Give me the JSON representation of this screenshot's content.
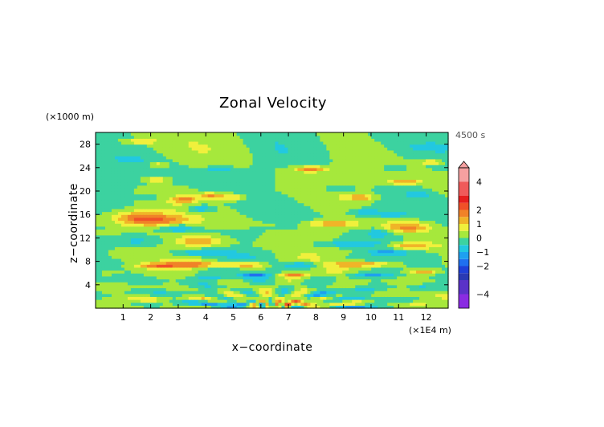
{
  "chart_data": {
    "type": "heatmap",
    "title": "Zonal Velocity",
    "xlabel": "x−coordinate",
    "ylabel": "z−coordinate",
    "x_unit": "(×1E4 m)",
    "y_unit": "(×1000 m)",
    "time_label": "4500 s",
    "xlim": [
      0,
      12.8
    ],
    "ylim": [
      0,
      30
    ],
    "x_ticks": [
      1,
      2,
      3,
      4,
      5,
      6,
      7,
      8,
      9,
      10,
      11,
      12
    ],
    "x_tick_labels": [
      "1",
      "2",
      "3",
      "4",
      "5",
      "6",
      "7",
      "8",
      "9",
      "10",
      "11",
      "12"
    ],
    "y_ticks": [
      4,
      8,
      12,
      16,
      20,
      24,
      28
    ],
    "y_tick_labels": [
      "4",
      "8",
      "12",
      "16",
      "20",
      "24",
      "28"
    ],
    "colorbar": {
      "tick_values": [
        4,
        2,
        1,
        0,
        -1,
        -2,
        -4
      ],
      "tick_labels": [
        "4",
        "2",
        "1",
        "0",
        "−1",
        "−2",
        "−4"
      ],
      "bands": [
        {
          "from": -5,
          "to": -4,
          "color": "#8a2be2"
        },
        {
          "from": -4,
          "to": -3,
          "color": "#5a32c8"
        },
        {
          "from": -3,
          "to": -2.5,
          "color": "#2a3ab4"
        },
        {
          "from": -2.5,
          "to": -2,
          "color": "#2040d8"
        },
        {
          "from": -2,
          "to": -1.5,
          "color": "#2070f0"
        },
        {
          "from": -1.5,
          "to": -1,
          "color": "#1ea0f0"
        },
        {
          "from": -1,
          "to": -0.5,
          "color": "#22c8e0"
        },
        {
          "from": -0.5,
          "to": 0,
          "color": "#3cd2a0"
        },
        {
          "from": 0,
          "to": 0.5,
          "color": "#a6e83c"
        },
        {
          "from": 0.5,
          "to": 1,
          "color": "#f0f03c"
        },
        {
          "from": 1,
          "to": 1.5,
          "color": "#f0b428"
        },
        {
          "from": 1.5,
          "to": 2,
          "color": "#f08228"
        },
        {
          "from": 2,
          "to": 2.5,
          "color": "#f05028"
        },
        {
          "from": 2.5,
          "to": 3,
          "color": "#e61e1e"
        },
        {
          "from": 3,
          "to": 4,
          "color": "#f05a5a"
        },
        {
          "from": 4,
          "to": 5,
          "color": "#f5a0a0"
        }
      ]
    },
    "field": {
      "description_source": "zonal velocity contour field, fan-shaped wave pattern from surface source near x=6.5",
      "source_x": 6.5,
      "background": 0.4,
      "features": [
        {
          "x": 1.5,
          "z": 15.5,
          "sx": 0.9,
          "sz": 1.2,
          "v": 1.7
        },
        {
          "x": 2.5,
          "z": 15,
          "sx": 1.0,
          "sz": 1.0,
          "v": 1.4
        },
        {
          "x": 1.6,
          "z": 11.5,
          "sx": 1.0,
          "sz": 0.9,
          "v": -0.9
        },
        {
          "x": 3.0,
          "z": 13.8,
          "sx": 0.6,
          "sz": 0.7,
          "v": -1.2
        },
        {
          "x": 3.8,
          "z": 11.5,
          "sx": 0.9,
          "sz": 1.0,
          "v": 1.6
        },
        {
          "x": 3.6,
          "z": 7.5,
          "sx": 1.2,
          "sz": 0.6,
          "v": 1.6
        },
        {
          "x": 2.2,
          "z": 7.3,
          "sx": 0.8,
          "sz": 0.5,
          "v": 1.5
        },
        {
          "x": 3.8,
          "z": 9.5,
          "sx": 1.0,
          "sz": 0.5,
          "v": -0.9
        },
        {
          "x": 4.2,
          "z": 5.3,
          "sx": 1.0,
          "sz": 0.5,
          "v": -0.8
        },
        {
          "x": 5.5,
          "z": 7.5,
          "sx": 0.6,
          "sz": 0.4,
          "v": 1.8
        },
        {
          "x": 5.8,
          "z": 5.8,
          "sx": 0.5,
          "sz": 0.4,
          "v": -1.6
        },
        {
          "x": 7.2,
          "z": 5.8,
          "sx": 0.5,
          "sz": 0.4,
          "v": 1.8
        },
        {
          "x": 7.5,
          "z": 7.5,
          "sx": 0.6,
          "sz": 0.4,
          "v": -1.2
        },
        {
          "x": 3.2,
          "z": 18.6,
          "sx": 0.4,
          "sz": 0.5,
          "v": 1.7
        },
        {
          "x": 3.8,
          "z": 17.0,
          "sx": 0.5,
          "sz": 0.7,
          "v": -1.2
        },
        {
          "x": 4.2,
          "z": 19.2,
          "sx": 0.5,
          "sz": 0.6,
          "v": 1.6
        },
        {
          "x": 5.0,
          "z": 19.0,
          "sx": 0.4,
          "sz": 0.6,
          "v": 1.3
        },
        {
          "x": 4.5,
          "z": 23.7,
          "sx": 0.6,
          "sz": 0.5,
          "v": -0.9
        },
        {
          "x": 2.2,
          "z": 22.0,
          "sx": 0.4,
          "sz": 0.3,
          "v": 1.6
        },
        {
          "x": 1.2,
          "z": 25.5,
          "sx": 0.5,
          "sz": 0.4,
          "v": -0.8
        },
        {
          "x": 1.6,
          "z": 28.5,
          "sx": 0.6,
          "sz": 0.3,
          "v": 1.5
        },
        {
          "x": 2.3,
          "z": 24.5,
          "sx": 0.3,
          "sz": 0.3,
          "v": 1.5
        },
        {
          "x": 1.4,
          "z": 3.0,
          "sx": 0.6,
          "sz": 0.3,
          "v": -0.7
        },
        {
          "x": 4.0,
          "z": 2.0,
          "sx": 0.9,
          "sz": 0.4,
          "v": 1.0
        },
        {
          "x": 7.8,
          "z": 23.8,
          "sx": 0.6,
          "sz": 0.5,
          "v": 1.8
        },
        {
          "x": 8.8,
          "z": 20.5,
          "sx": 0.5,
          "sz": 0.5,
          "v": -0.9
        },
        {
          "x": 9.6,
          "z": 19.0,
          "sx": 0.5,
          "sz": 0.5,
          "v": 1.5
        },
        {
          "x": 9.8,
          "z": 16.5,
          "sx": 0.6,
          "sz": 0.6,
          "v": -0.9
        },
        {
          "x": 8.6,
          "z": 14.5,
          "sx": 0.9,
          "sz": 0.6,
          "v": 1.6
        },
        {
          "x": 9.3,
          "z": 11.0,
          "sx": 1.1,
          "sz": 0.5,
          "v": -1.0
        },
        {
          "x": 11.3,
          "z": 14.0,
          "sx": 0.9,
          "sz": 1.1,
          "v": 1.7
        },
        {
          "x": 11.4,
          "z": 10.7,
          "sx": 0.8,
          "sz": 0.7,
          "v": 1.6
        },
        {
          "x": 10.3,
          "z": 13.0,
          "sx": 0.5,
          "sz": 0.8,
          "v": -1.0
        },
        {
          "x": 10.6,
          "z": 9.7,
          "sx": 0.7,
          "sz": 0.5,
          "v": -1.0
        },
        {
          "x": 10.7,
          "z": 16.0,
          "sx": 0.5,
          "sz": 0.4,
          "v": -0.9
        },
        {
          "x": 9.6,
          "z": 7.6,
          "sx": 1.1,
          "sz": 0.5,
          "v": 1.6
        },
        {
          "x": 10.0,
          "z": 5.7,
          "sx": 0.9,
          "sz": 0.4,
          "v": -0.8
        },
        {
          "x": 11.9,
          "z": 6.3,
          "sx": 0.6,
          "sz": 0.5,
          "v": 1.6
        },
        {
          "x": 11.2,
          "z": 21.6,
          "sx": 0.6,
          "sz": 0.4,
          "v": 1.6
        },
        {
          "x": 11.7,
          "z": 19.5,
          "sx": 0.4,
          "sz": 0.4,
          "v": -0.9
        },
        {
          "x": 12.2,
          "z": 25.0,
          "sx": 0.4,
          "sz": 0.4,
          "v": 1.5
        },
        {
          "x": 12.0,
          "z": 27.5,
          "sx": 0.5,
          "sz": 0.3,
          "v": -0.7
        },
        {
          "x": 11.8,
          "z": 3.5,
          "sx": 0.4,
          "sz": 0.4,
          "v": -0.6
        },
        {
          "x": 8.4,
          "z": 2.4,
          "sx": 0.6,
          "sz": 0.4,
          "v": -0.8
        },
        {
          "x": 9.2,
          "z": 1.0,
          "sx": 1.1,
          "sz": 0.3,
          "v": 1.0
        },
        {
          "x": 5.3,
          "z": 0.5,
          "sx": 1.2,
          "sz": 0.3,
          "v": -0.7
        },
        {
          "x": 7.1,
          "z": 1.0,
          "sx": 0.5,
          "sz": 0.4,
          "v": 1.5
        },
        {
          "x": 2.0,
          "z": 19.0,
          "sx": 0.5,
          "sz": 0.4,
          "v": -0.5
        },
        {
          "x": 10.8,
          "z": 24.0,
          "sx": 0.5,
          "sz": 0.4,
          "v": -0.6
        }
      ]
    }
  }
}
